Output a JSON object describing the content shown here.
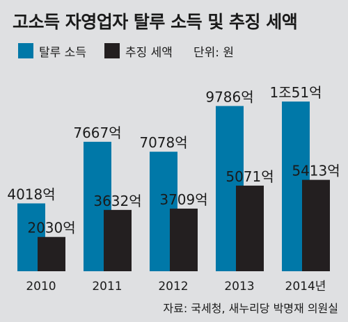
{
  "title": "고소득 자영업자 탈루 소득 및 추징 세액",
  "unit": "단위: 원",
  "source": "자료: 국세청, 새누리당 박명재 의원실",
  "colors": {
    "series1": "#0078a8",
    "series2": "#231f20",
    "background": "#dfe0e2"
  },
  "chart_data": {
    "type": "bar",
    "categories": [
      "2010",
      "2011",
      "2012",
      "2013",
      "2014년"
    ],
    "series": [
      {
        "name": "탈루 소득",
        "values": [
          4018,
          7667,
          7078,
          9786,
          10051
        ],
        "labels": [
          "4018억",
          "7667억",
          "7078억",
          "9786억",
          "1조51억"
        ]
      },
      {
        "name": "추징 세액",
        "values": [
          2030,
          3632,
          3709,
          5071,
          5413
        ],
        "labels": [
          "2030억",
          "3632억",
          "3709억",
          "5071억",
          "5413억"
        ]
      }
    ],
    "ylim": [
      0,
      10051
    ],
    "grid": false,
    "legend": "top-left"
  }
}
